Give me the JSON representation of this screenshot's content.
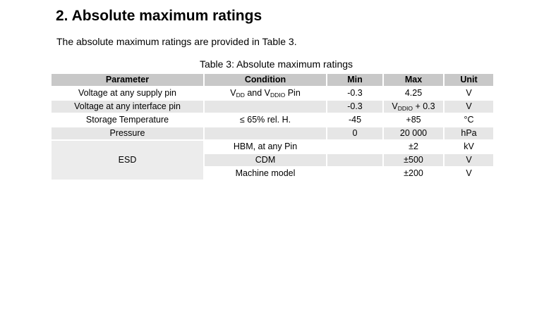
{
  "section_heading": "2. Absolute maximum ratings",
  "intro_text": "The absolute maximum ratings are provided in Table 3.",
  "table": {
    "caption": "Table 3: Absolute maximum ratings",
    "headers": [
      "Parameter",
      "Condition",
      "Min",
      "Max",
      "Unit"
    ],
    "rows": [
      {
        "parameter": "Voltage at any supply pin",
        "condition_a": "V",
        "condition_a_sub": "DD",
        "condition_b": " and V",
        "condition_b_sub": "DDIO",
        "condition_c": " Pin",
        "min": "-0.3",
        "max": "4.25",
        "unit": "V"
      },
      {
        "parameter": "Voltage at any interface pin",
        "condition": "",
        "min": "-0.3",
        "max_a": "V",
        "max_sub": "DDIO",
        "max_b": " + 0.3",
        "unit": "V"
      },
      {
        "parameter": "Storage Temperature",
        "condition": "≤ 65% rel. H.",
        "min": "-45",
        "max": "+85",
        "unit": "°C"
      },
      {
        "parameter": "Pressure",
        "condition": "",
        "min": "0",
        "max": "20 000",
        "unit": "hPa"
      },
      {
        "parameter": "ESD",
        "condition": "HBM, at any Pin",
        "min": "",
        "max": "±2",
        "unit": "kV"
      },
      {
        "condition": "CDM",
        "min": "",
        "max": "±500",
        "unit": "V"
      },
      {
        "condition": "Machine model",
        "min": "",
        "max": "±200",
        "unit": "V"
      }
    ]
  }
}
